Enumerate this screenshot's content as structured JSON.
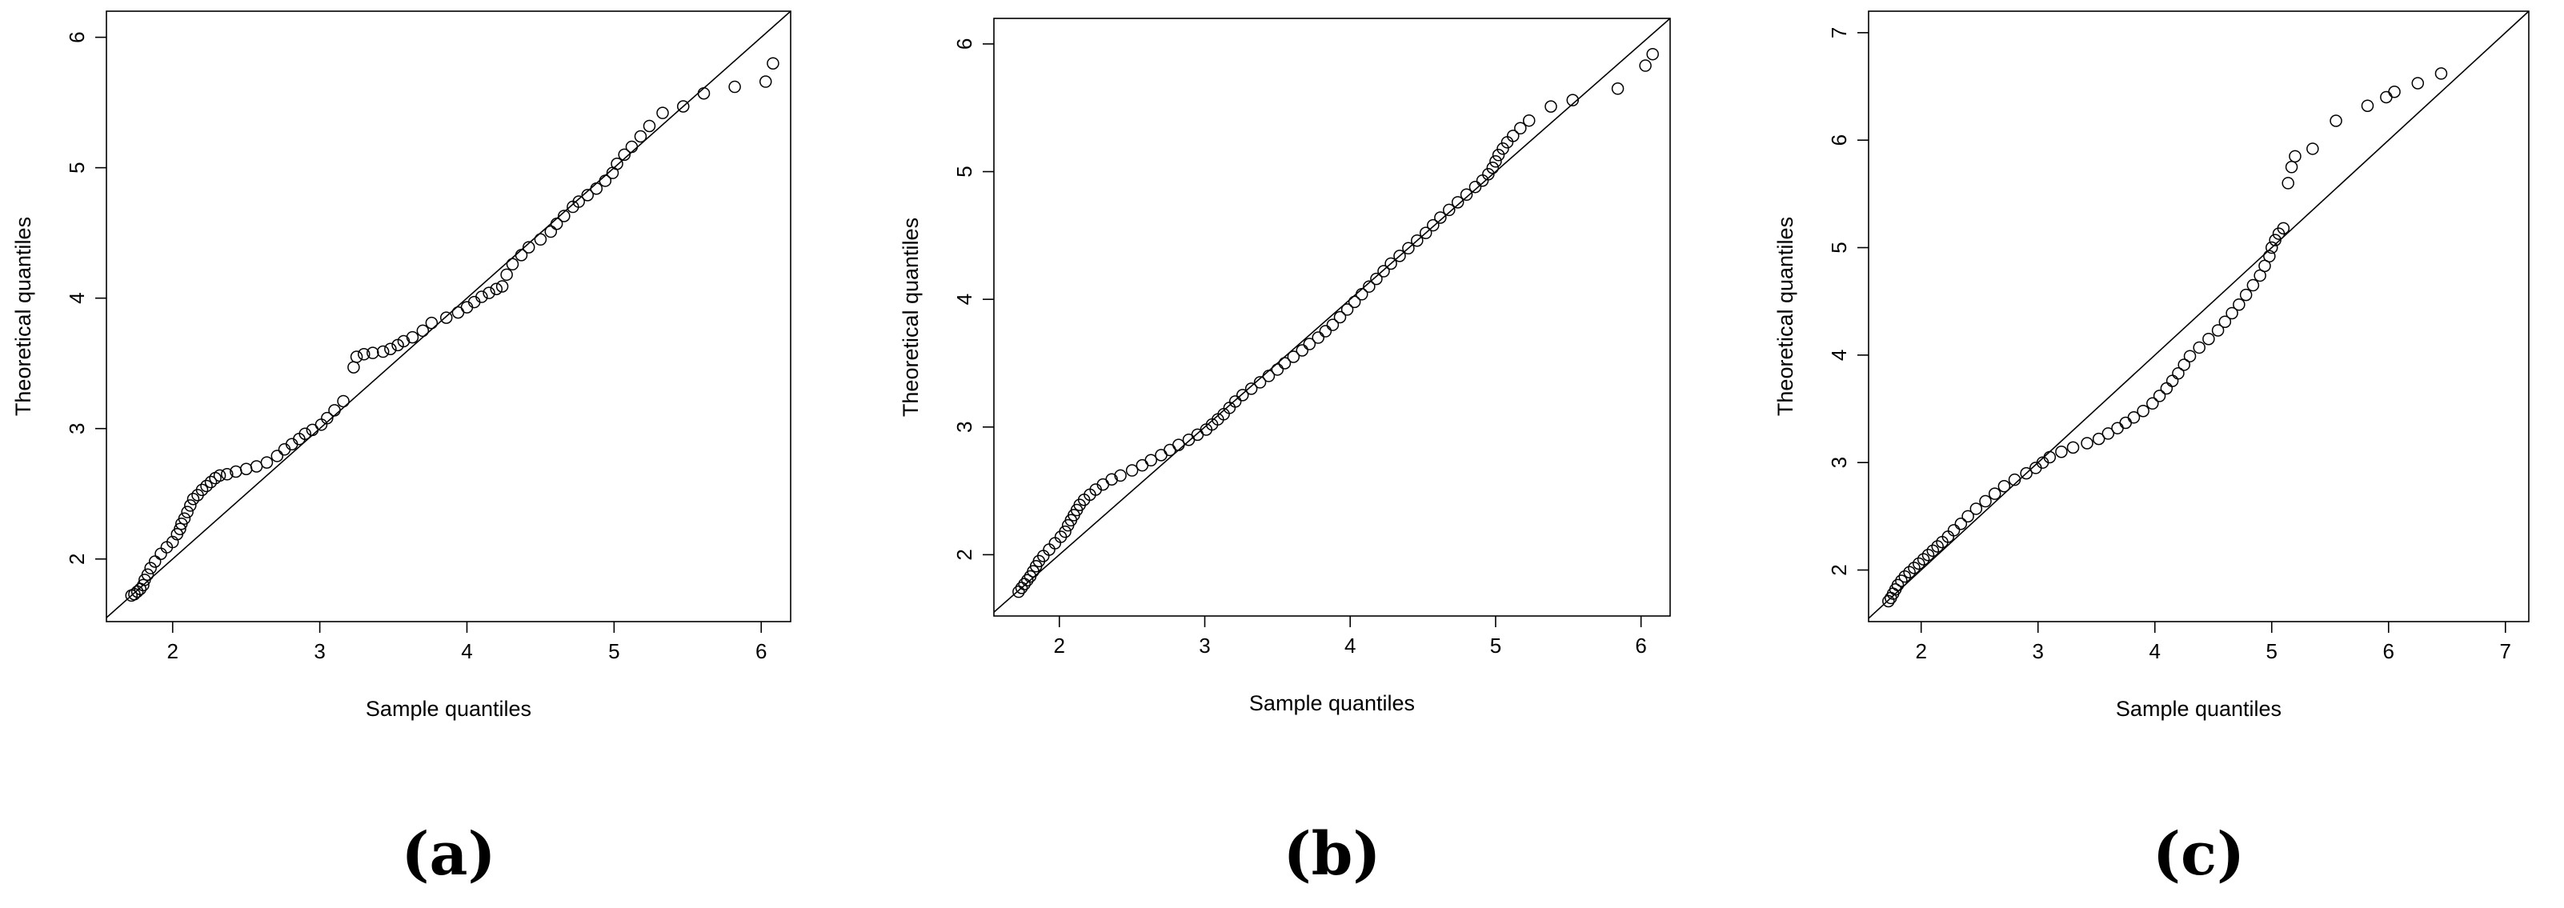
{
  "chart_data": [
    {
      "type": "scatter",
      "panel_label": "(a)",
      "xlabel": "Sample quantiles",
      "ylabel": "Theoretical quantiles",
      "xlim": [
        1.55,
        6.2
      ],
      "ylim": [
        1.52,
        6.2
      ],
      "xticks": [
        2,
        3,
        4,
        5,
        6
      ],
      "yticks": [
        2,
        3,
        4,
        5,
        6
      ],
      "grid": false,
      "reference_line": "y = x",
      "marker": "open-circle",
      "x": [
        1.72,
        1.74,
        1.76,
        1.78,
        1.8,
        1.81,
        1.83,
        1.85,
        1.88,
        1.92,
        1.96,
        2.0,
        2.03,
        2.05,
        2.06,
        2.08,
        2.1,
        2.12,
        2.14,
        2.17,
        2.2,
        2.23,
        2.26,
        2.29,
        2.32,
        2.37,
        2.43,
        2.5,
        2.57,
        2.64,
        2.71,
        2.76,
        2.81,
        2.86,
        2.9,
        2.95,
        3.01,
        3.05,
        3.1,
        3.16,
        3.23,
        3.25,
        3.3,
        3.36,
        3.43,
        3.48,
        3.53,
        3.57,
        3.63,
        3.7,
        3.76,
        3.86,
        3.94,
        4.0,
        4.05,
        4.1,
        4.15,
        4.2,
        4.24,
        4.27,
        4.31,
        4.37,
        4.42,
        4.5,
        4.57,
        4.61,
        4.66,
        4.72,
        4.76,
        4.82,
        4.88,
        4.94,
        4.99,
        5.02,
        5.07,
        5.12,
        5.18,
        5.24,
        5.33,
        5.47,
        5.61,
        5.82,
        6.03,
        6.08
      ],
      "y": [
        1.72,
        1.73,
        1.75,
        1.77,
        1.8,
        1.84,
        1.88,
        1.93,
        1.98,
        2.04,
        2.09,
        2.13,
        2.19,
        2.23,
        2.27,
        2.31,
        2.36,
        2.41,
        2.46,
        2.49,
        2.53,
        2.56,
        2.59,
        2.62,
        2.64,
        2.65,
        2.67,
        2.69,
        2.71,
        2.74,
        2.79,
        2.84,
        2.88,
        2.92,
        2.96,
        2.99,
        3.03,
        3.08,
        3.14,
        3.21,
        3.47,
        3.55,
        3.57,
        3.58,
        3.59,
        3.61,
        3.64,
        3.67,
        3.7,
        3.75,
        3.81,
        3.85,
        3.89,
        3.93,
        3.97,
        4.01,
        4.04,
        4.07,
        4.09,
        4.18,
        4.26,
        4.33,
        4.39,
        4.45,
        4.51,
        4.57,
        4.63,
        4.7,
        4.74,
        4.79,
        4.84,
        4.9,
        4.96,
        5.03,
        5.1,
        5.16,
        5.24,
        5.32,
        5.42,
        5.47,
        5.57,
        5.62,
        5.66,
        5.8
      ]
    },
    {
      "type": "scatter",
      "panel_label": "(b)",
      "xlabel": "Sample quantiles",
      "ylabel": "Theoretical quantiles",
      "xlim": [
        1.55,
        6.2
      ],
      "ylim": [
        1.52,
        6.2
      ],
      "xticks": [
        2,
        3,
        4,
        5,
        6
      ],
      "yticks": [
        2,
        3,
        4,
        5,
        6
      ],
      "grid": false,
      "reference_line": "y = x",
      "marker": "open-circle",
      "x": [
        1.72,
        1.74,
        1.76,
        1.78,
        1.8,
        1.82,
        1.84,
        1.86,
        1.89,
        1.93,
        1.97,
        2.01,
        2.04,
        2.06,
        2.08,
        2.1,
        2.12,
        2.14,
        2.17,
        2.21,
        2.25,
        2.3,
        2.36,
        2.42,
        2.5,
        2.57,
        2.63,
        2.7,
        2.76,
        2.82,
        2.89,
        2.95,
        3.01,
        3.05,
        3.09,
        3.13,
        3.17,
        3.21,
        3.26,
        3.32,
        3.38,
        3.44,
        3.5,
        3.55,
        3.61,
        3.67,
        3.72,
        3.78,
        3.83,
        3.88,
        3.93,
        3.98,
        4.03,
        4.08,
        4.13,
        4.18,
        4.23,
        4.28,
        4.34,
        4.4,
        4.46,
        4.52,
        4.57,
        4.62,
        4.68,
        4.74,
        4.8,
        4.86,
        4.91,
        4.95,
        4.98,
        5.0,
        5.02,
        5.05,
        5.08,
        5.12,
        5.17,
        5.23,
        5.38,
        5.53,
        5.84,
        6.03,
        6.08
      ],
      "y": [
        1.71,
        1.74,
        1.77,
        1.8,
        1.83,
        1.87,
        1.91,
        1.95,
        1.99,
        2.04,
        2.09,
        2.14,
        2.18,
        2.23,
        2.27,
        2.31,
        2.35,
        2.39,
        2.43,
        2.47,
        2.51,
        2.55,
        2.59,
        2.62,
        2.66,
        2.7,
        2.74,
        2.78,
        2.82,
        2.86,
        2.9,
        2.94,
        2.98,
        3.02,
        3.06,
        3.1,
        3.15,
        3.2,
        3.25,
        3.3,
        3.35,
        3.4,
        3.45,
        3.5,
        3.55,
        3.6,
        3.65,
        3.7,
        3.75,
        3.8,
        3.86,
        3.92,
        3.98,
        4.04,
        4.1,
        4.16,
        4.22,
        4.28,
        4.34,
        4.4,
        4.46,
        4.52,
        4.58,
        4.64,
        4.7,
        4.76,
        4.82,
        4.88,
        4.93,
        4.98,
        5.03,
        5.08,
        5.13,
        5.18,
        5.23,
        5.28,
        5.34,
        5.4,
        5.51,
        5.56,
        5.65,
        5.83,
        5.92
      ]
    },
    {
      "type": "scatter",
      "panel_label": "(c)",
      "xlabel": "Sample quantiles",
      "ylabel": "Theoretical quantiles",
      "xlim": [
        1.55,
        7.2
      ],
      "ylim": [
        1.52,
        7.2
      ],
      "xticks": [
        2,
        3,
        4,
        5,
        6,
        7
      ],
      "yticks": [
        2,
        3,
        4,
        5,
        6,
        7
      ],
      "grid": false,
      "reference_line": "y = x",
      "marker": "open-circle",
      "x": [
        1.72,
        1.74,
        1.76,
        1.78,
        1.8,
        1.83,
        1.86,
        1.9,
        1.94,
        1.98,
        2.02,
        2.06,
        2.1,
        2.14,
        2.18,
        2.23,
        2.28,
        2.34,
        2.4,
        2.47,
        2.55,
        2.63,
        2.71,
        2.8,
        2.9,
        2.98,
        3.04,
        3.1,
        3.2,
        3.3,
        3.42,
        3.52,
        3.6,
        3.68,
        3.75,
        3.82,
        3.9,
        3.98,
        4.04,
        4.1,
        4.15,
        4.2,
        4.25,
        4.3,
        4.38,
        4.46,
        4.54,
        4.6,
        4.66,
        4.72,
        4.78,
        4.84,
        4.9,
        4.94,
        4.98,
        5.0,
        5.03,
        5.06,
        5.1,
        5.14,
        5.17,
        5.2,
        5.35,
        5.55,
        5.82,
        5.98,
        6.05,
        6.25,
        6.45
      ],
      "y": [
        1.71,
        1.74,
        1.78,
        1.82,
        1.86,
        1.9,
        1.94,
        1.98,
        2.02,
        2.06,
        2.1,
        2.14,
        2.18,
        2.22,
        2.26,
        2.31,
        2.37,
        2.43,
        2.5,
        2.57,
        2.64,
        2.71,
        2.78,
        2.84,
        2.9,
        2.95,
        3.0,
        3.05,
        3.1,
        3.14,
        3.18,
        3.22,
        3.27,
        3.32,
        3.37,
        3.42,
        3.48,
        3.55,
        3.62,
        3.69,
        3.76,
        3.83,
        3.91,
        3.99,
        4.07,
        4.15,
        4.23,
        4.31,
        4.39,
        4.47,
        4.56,
        4.65,
        4.74,
        4.83,
        4.92,
        5.0,
        5.07,
        5.13,
        5.18,
        5.6,
        5.75,
        5.85,
        5.92,
        6.18,
        6.32,
        6.4,
        6.45,
        6.53,
        6.62
      ]
    }
  ]
}
